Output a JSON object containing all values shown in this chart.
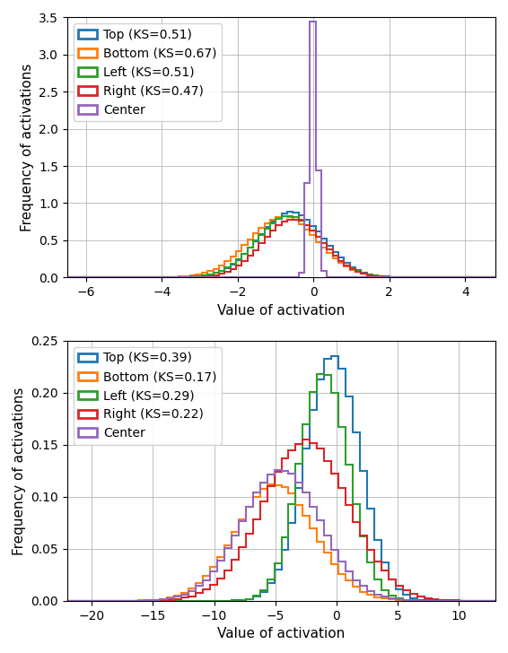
{
  "top_plot": {
    "xlabel": "Value of activation",
    "ylabel": "Frequency of activations",
    "xlim": [
      -6.5,
      4.8
    ],
    "ylim": [
      0,
      3.5
    ],
    "yticks": [
      0.0,
      0.5,
      1.0,
      1.5,
      2.0,
      2.5,
      3.0,
      3.5
    ],
    "xticks": [
      -6,
      -4,
      -2,
      0,
      2,
      4
    ],
    "legend_labels": [
      "Top (KS=0.51)",
      "Bottom (KS=0.67)",
      "Left (KS=0.51)",
      "Right (KS=0.47)",
      "Center"
    ],
    "colors": [
      "#1f77b4",
      "#ff7f0e",
      "#2ca02c",
      "#d62728",
      "#9467bd"
    ],
    "distributions": [
      {
        "mu": -0.6,
        "sigma": 0.85,
        "peak": 0.88
      },
      {
        "mu": -0.8,
        "sigma": 0.9,
        "peak": 0.82
      },
      {
        "mu": -0.65,
        "sigma": 0.85,
        "peak": 0.83
      },
      {
        "mu": -0.55,
        "sigma": 0.8,
        "peak": 0.78
      },
      {
        "mu": -0.02,
        "sigma": 0.1,
        "peak": 3.45
      }
    ],
    "bins": 80,
    "xrange": [
      -7,
      5
    ]
  },
  "bottom_plot": {
    "xlabel": "Value of activation",
    "ylabel": "Frequency of activations",
    "xlim": [
      -22,
      13
    ],
    "ylim": [
      0,
      0.25
    ],
    "yticks": [
      0.0,
      0.05,
      0.1,
      0.15,
      0.2,
      0.25
    ],
    "xticks": [
      -20,
      -15,
      -10,
      -5,
      0,
      5,
      10
    ],
    "legend_labels": [
      "Top (KS=0.39)",
      "Bottom (KS=0.17)",
      "Left (KS=0.29)",
      "Right (KS=0.22)",
      "Center"
    ],
    "colors": [
      "#1f77b4",
      "#ff7f0e",
      "#2ca02c",
      "#d62728",
      "#9467bd"
    ],
    "distributions": [
      {
        "mu": -0.3,
        "sigma": 2.2,
        "peak": 0.235
      },
      {
        "mu": -5.0,
        "sigma": 3.2,
        "peak": 0.112
      },
      {
        "mu": -1.0,
        "sigma": 2.0,
        "peak": 0.218
      },
      {
        "mu": -2.5,
        "sigma": 3.5,
        "peak": 0.155
      },
      {
        "mu": -4.5,
        "sigma": 3.2,
        "peak": 0.126
      }
    ],
    "bins": 60,
    "xrange": [
      -22,
      13
    ]
  },
  "background_color": "#ffffff",
  "grid_color": "#b0b0b0",
  "figsize": [
    5.66,
    7.28
  ],
  "dpi": 100
}
